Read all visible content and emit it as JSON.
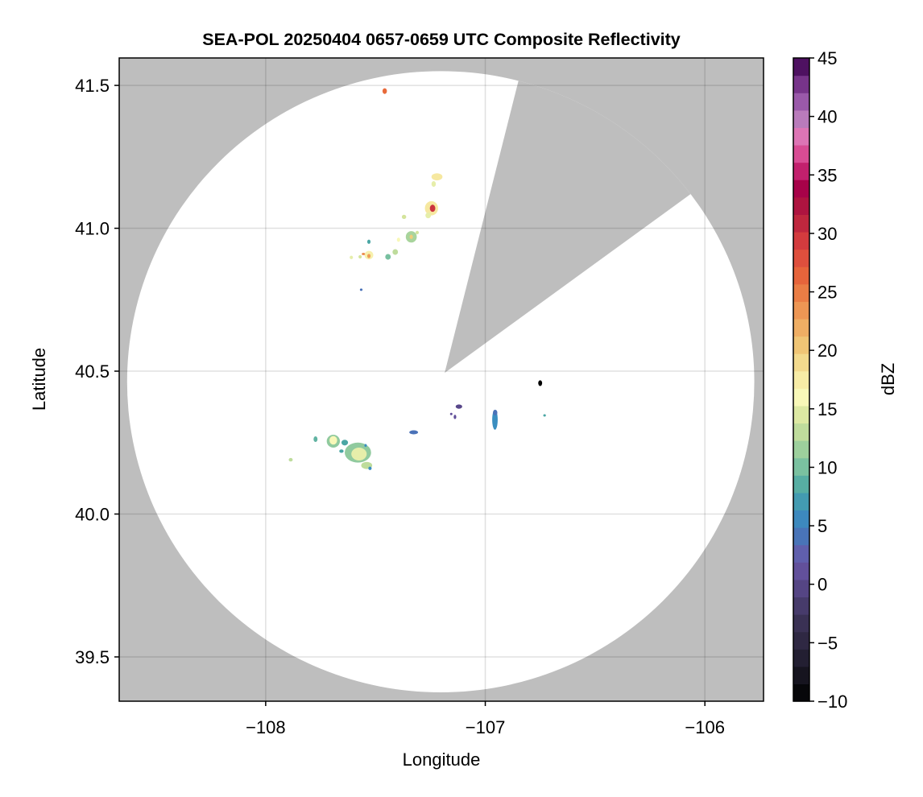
{
  "chart_data": {
    "type": "heatmap",
    "title": "SEA-POL 20250404 0657-0659 UTC Composite Reflectivity",
    "xlabel": "Longitude",
    "ylabel": "Latitude",
    "xlim": [
      -108.667,
      -105.733
    ],
    "ylim": [
      39.345,
      41.596
    ],
    "xticks": [
      -108,
      -107,
      -106
    ],
    "xtick_labels": [
      "−108",
      "−107",
      "−106"
    ],
    "yticks": [
      39.5,
      40.0,
      40.5,
      41.0,
      41.5
    ],
    "ytick_labels": [
      "39.5",
      "40.0",
      "40.5",
      "41.0",
      "41.5"
    ],
    "grid": true,
    "no_data_color": "#bebebe",
    "coverage": {
      "center": [
        -107.203,
        40.463
      ],
      "radius_lon": 1.428,
      "radius_lat": 1.087,
      "blocked_sector": {
        "apex": [
          -107.185,
          40.494
        ],
        "edge1": [
          -106.846,
          41.525
        ],
        "edge2": [
          -106.059,
          41.123
        ]
      }
    },
    "colorbar": {
      "label": "dBZ",
      "range": [
        -10,
        45
      ],
      "ticks": [
        -10,
        -5,
        0,
        5,
        10,
        15,
        20,
        25,
        30,
        35,
        40,
        45
      ],
      "tick_labels": [
        "−10",
        "−5",
        "0",
        "5",
        "10",
        "15",
        "20",
        "25",
        "30",
        "35",
        "40",
        "45"
      ],
      "levels": 37
    },
    "echoes": [
      {
        "lon": -107.458,
        "lat": 41.48,
        "dlon": 0.02,
        "dlat": 0.02,
        "dbz": 26
      },
      {
        "lon": -107.22,
        "lat": 41.18,
        "dlon": 0.05,
        "dlat": 0.025,
        "dbz": 18
      },
      {
        "lon": -107.235,
        "lat": 41.155,
        "dlon": 0.02,
        "dlat": 0.02,
        "dbz": 15
      },
      {
        "lon": -107.245,
        "lat": 41.07,
        "dlon": 0.06,
        "dlat": 0.05,
        "dbz": 18
      },
      {
        "lon": -107.24,
        "lat": 41.07,
        "dlon": 0.025,
        "dlat": 0.025,
        "dbz": 30
      },
      {
        "lon": -107.26,
        "lat": 41.045,
        "dlon": 0.025,
        "dlat": 0.02,
        "dbz": 15
      },
      {
        "lon": -107.37,
        "lat": 41.04,
        "dlon": 0.02,
        "dlat": 0.015,
        "dbz": 14
      },
      {
        "lon": -107.337,
        "lat": 40.97,
        "dlon": 0.05,
        "dlat": 0.04,
        "dbz": 12
      },
      {
        "lon": -107.337,
        "lat": 40.97,
        "dlon": 0.015,
        "dlat": 0.015,
        "dbz": 20
      },
      {
        "lon": -107.31,
        "lat": 40.985,
        "dlon": 0.015,
        "dlat": 0.012,
        "dbz": 14
      },
      {
        "lon": -107.395,
        "lat": 40.96,
        "dlon": 0.015,
        "dlat": 0.015,
        "dbz": 16
      },
      {
        "lon": -107.41,
        "lat": 40.917,
        "dlon": 0.025,
        "dlat": 0.02,
        "dbz": 13
      },
      {
        "lon": -107.443,
        "lat": 40.9,
        "dlon": 0.025,
        "dlat": 0.02,
        "dbz": 10
      },
      {
        "lon": -107.53,
        "lat": 40.906,
        "dlon": 0.04,
        "dlat": 0.03,
        "dbz": 17
      },
      {
        "lon": -107.53,
        "lat": 40.903,
        "dlon": 0.015,
        "dlat": 0.015,
        "dbz": 23
      },
      {
        "lon": -107.555,
        "lat": 40.91,
        "dlon": 0.015,
        "dlat": 0.008,
        "dbz": 24
      },
      {
        "lon": -107.57,
        "lat": 40.9,
        "dlon": 0.015,
        "dlat": 0.012,
        "dbz": 14
      },
      {
        "lon": -107.61,
        "lat": 40.898,
        "dlon": 0.015,
        "dlat": 0.012,
        "dbz": 15
      },
      {
        "lon": -107.53,
        "lat": 40.953,
        "dlon": 0.015,
        "dlat": 0.015,
        "dbz": 8
      },
      {
        "lon": -107.565,
        "lat": 40.785,
        "dlon": 0.012,
        "dlat": 0.008,
        "dbz": 4
      },
      {
        "lon": -107.886,
        "lat": 40.19,
        "dlon": 0.018,
        "dlat": 0.012,
        "dbz": 13
      },
      {
        "lon": -107.773,
        "lat": 40.262,
        "dlon": 0.018,
        "dlat": 0.02,
        "dbz": 9
      },
      {
        "lon": -107.692,
        "lat": 40.255,
        "dlon": 0.06,
        "dlat": 0.045,
        "dbz": 11
      },
      {
        "lon": -107.692,
        "lat": 40.258,
        "dlon": 0.035,
        "dlat": 0.03,
        "dbz": 16
      },
      {
        "lon": -107.64,
        "lat": 40.25,
        "dlon": 0.03,
        "dlat": 0.02,
        "dbz": 8
      },
      {
        "lon": -107.655,
        "lat": 40.22,
        "dlon": 0.02,
        "dlat": 0.012,
        "dbz": 8
      },
      {
        "lon": -107.58,
        "lat": 40.215,
        "dlon": 0.12,
        "dlat": 0.07,
        "dbz": 11
      },
      {
        "lon": -107.575,
        "lat": 40.21,
        "dlon": 0.07,
        "dlat": 0.045,
        "dbz": 15
      },
      {
        "lon": -107.54,
        "lat": 40.17,
        "dlon": 0.05,
        "dlat": 0.025,
        "dbz": 13
      },
      {
        "lon": -107.525,
        "lat": 40.16,
        "dlon": 0.015,
        "dlat": 0.012,
        "dbz": 6
      },
      {
        "lon": -107.545,
        "lat": 40.24,
        "dlon": 0.01,
        "dlat": 0.01,
        "dbz": 6
      },
      {
        "lon": -107.326,
        "lat": 40.286,
        "dlon": 0.04,
        "dlat": 0.014,
        "dbz": 4
      },
      {
        "lon": -107.12,
        "lat": 40.376,
        "dlon": 0.03,
        "dlat": 0.015,
        "dbz": 0
      },
      {
        "lon": -107.138,
        "lat": 40.34,
        "dlon": 0.012,
        "dlat": 0.015,
        "dbz": 1
      },
      {
        "lon": -107.155,
        "lat": 40.35,
        "dlon": 0.006,
        "dlat": 0.008,
        "dbz": 1
      },
      {
        "lon": -106.956,
        "lat": 40.33,
        "dlon": 0.025,
        "dlat": 0.07,
        "dbz": 6
      },
      {
        "lon": -106.955,
        "lat": 40.355,
        "dlon": 0.02,
        "dlat": 0.02,
        "dbz": 4
      },
      {
        "lon": -106.73,
        "lat": 40.345,
        "dlon": 0.012,
        "dlat": 0.005,
        "dbz": 8
      },
      {
        "lon": -106.75,
        "lat": 40.458,
        "dlon": 0.018,
        "dlat": 0.02,
        "dbz": -10
      }
    ]
  }
}
